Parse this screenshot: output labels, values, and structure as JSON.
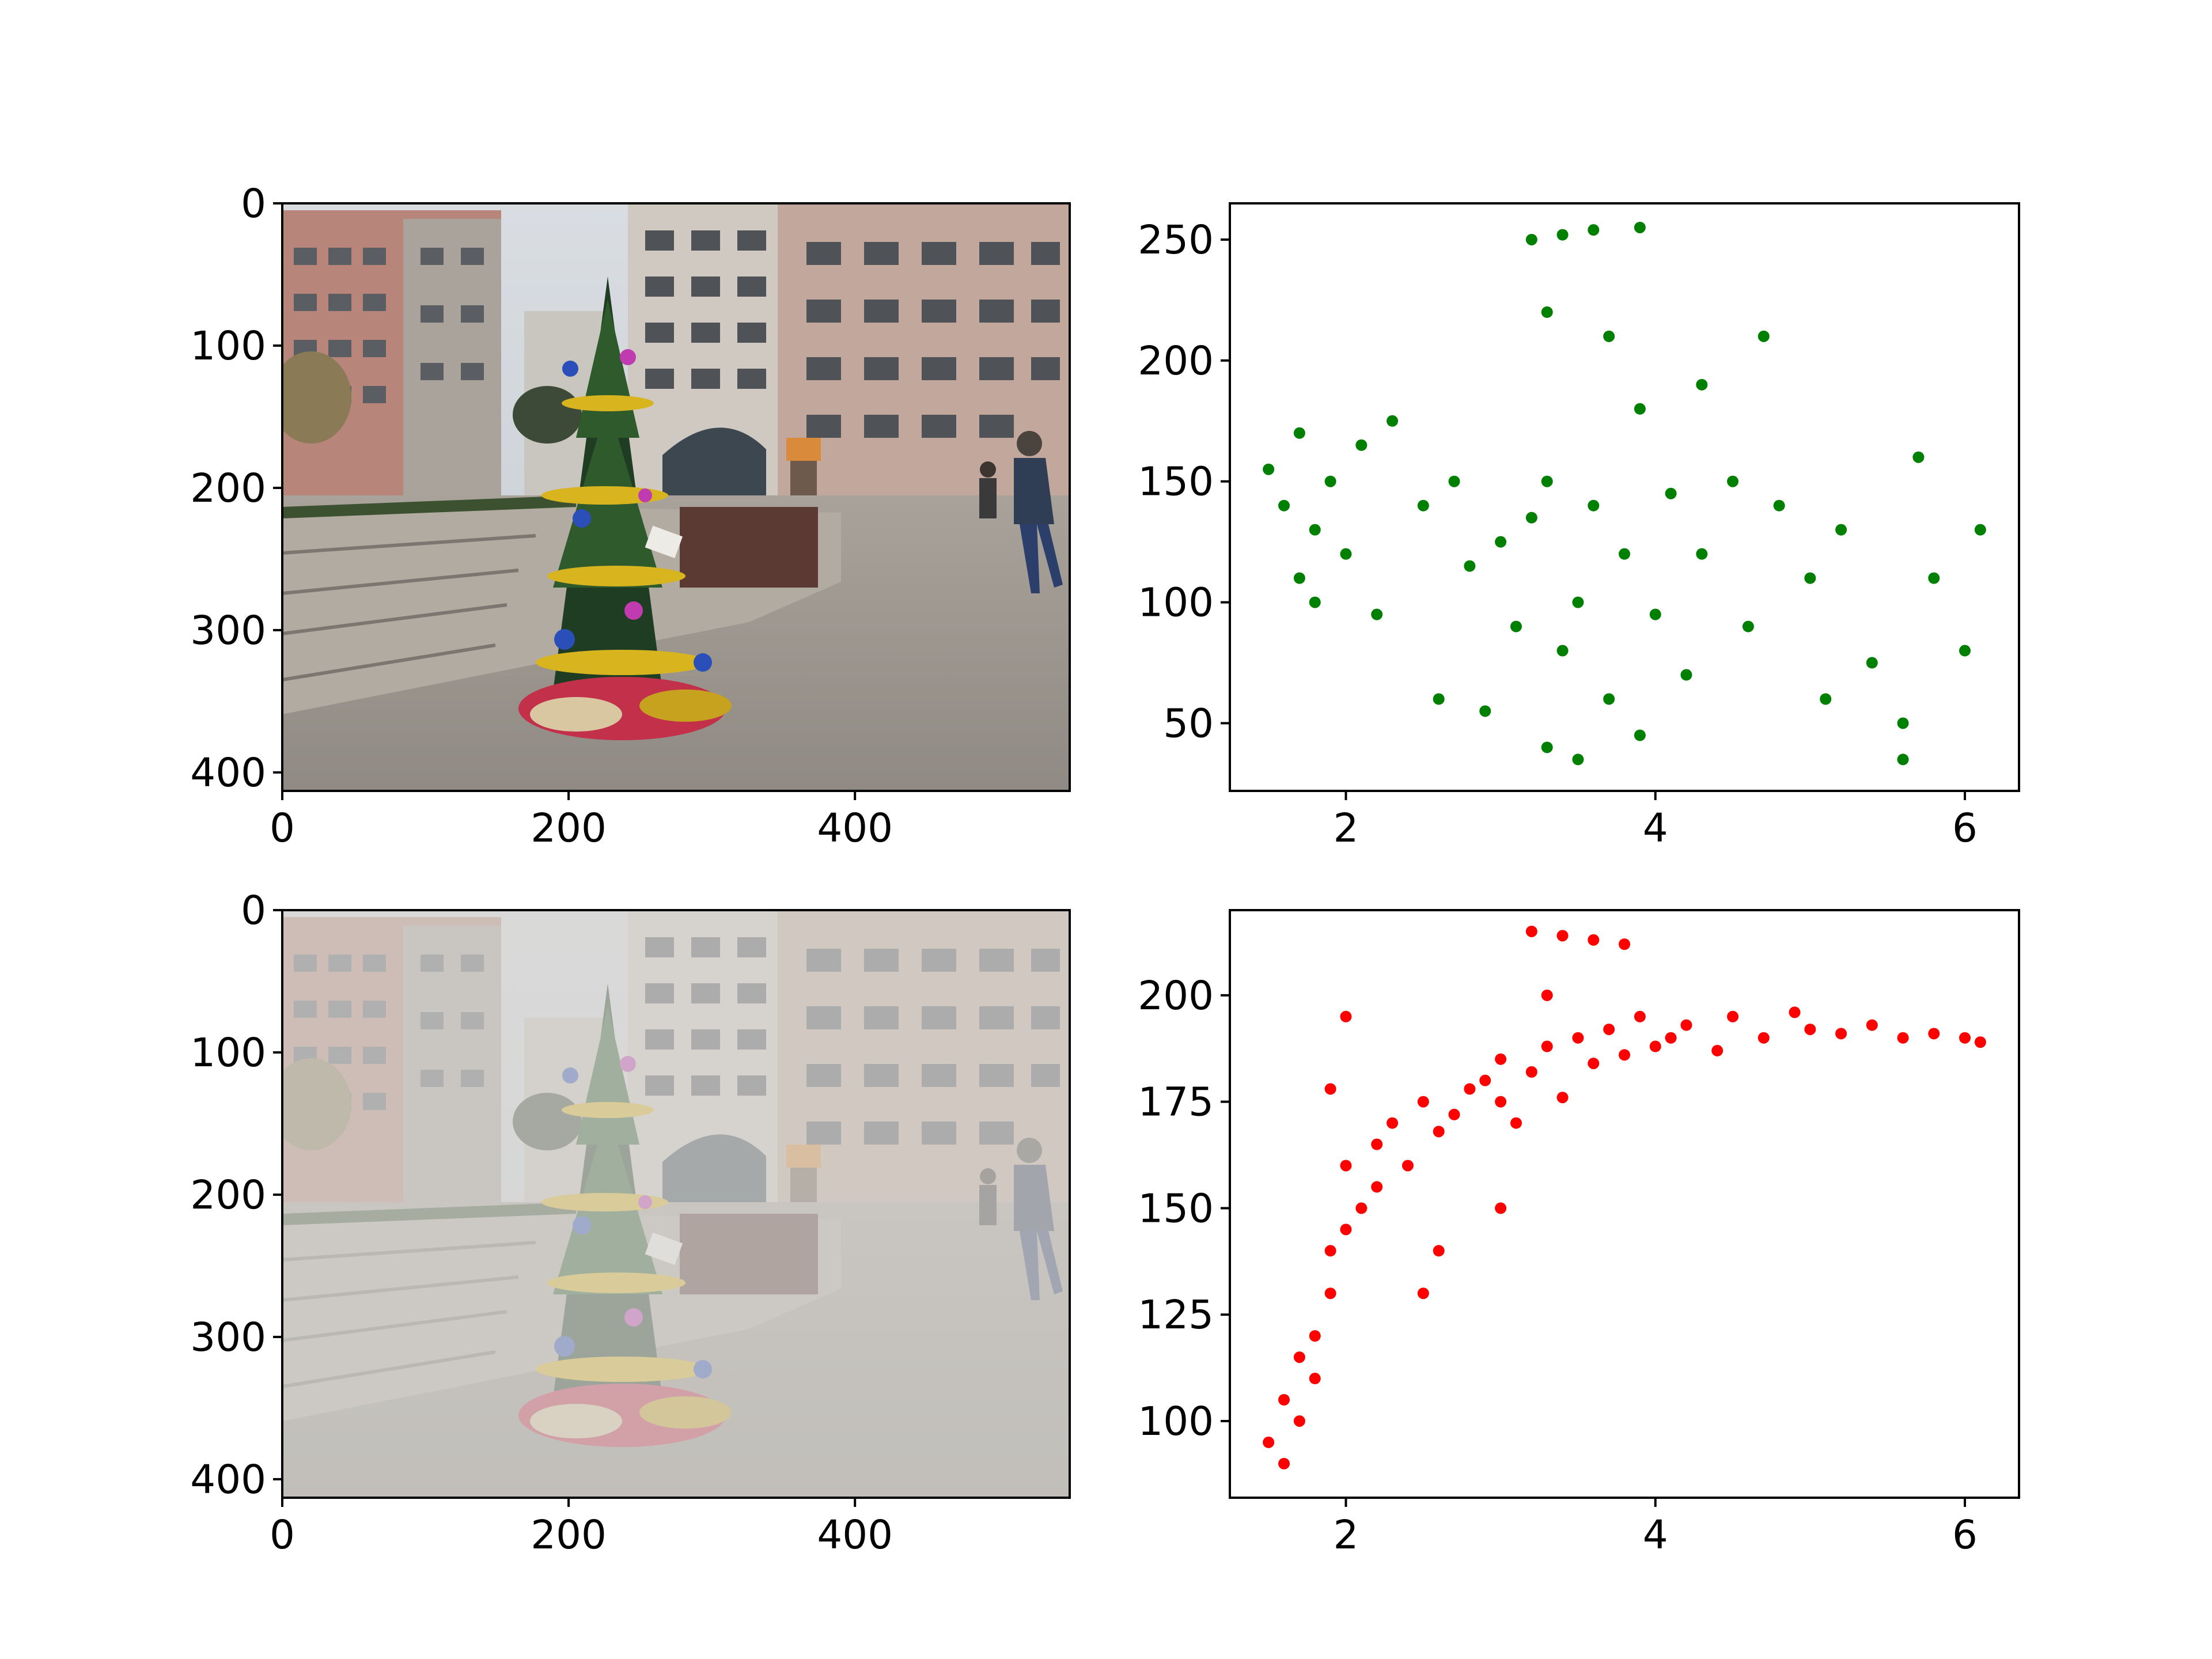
{
  "figure": {
    "layout": "2x2 grid",
    "background": "#ffffff"
  },
  "panels": {
    "clear_image": {
      "kind": "image",
      "description_icon": "photo-christmas-tree-clear",
      "x_ticks": [
        "0",
        "200",
        "400"
      ],
      "y_ticks": [
        "0",
        "100",
        "200",
        "300",
        "400"
      ],
      "xlim": [
        0,
        550
      ],
      "ylim": [
        413,
        0
      ]
    },
    "hazy_image": {
      "kind": "image",
      "description_icon": "photo-christmas-tree-hazy",
      "x_ticks": [
        "0",
        "200",
        "400"
      ],
      "y_ticks": [
        "0",
        "100",
        "200",
        "300",
        "400"
      ],
      "xlim": [
        0,
        550
      ],
      "ylim": [
        413,
        0
      ]
    }
  },
  "chart_data": [
    {
      "type": "scatter",
      "panel": "top-right",
      "color": "#008000",
      "xlim": [
        1.25,
        6.35
      ],
      "ylim": [
        22,
        265
      ],
      "x_ticks": [
        "2",
        "4",
        "6"
      ],
      "y_ticks": [
        "50",
        "100",
        "150",
        "200",
        "250"
      ],
      "grid": false,
      "series": [
        {
          "points": [
            [
              1.5,
              155
            ],
            [
              1.6,
              140
            ],
            [
              1.7,
              170
            ],
            [
              1.8,
              130
            ],
            [
              1.9,
              150
            ],
            [
              2.0,
              120
            ],
            [
              1.7,
              110
            ],
            [
              1.8,
              100
            ],
            [
              2.1,
              165
            ],
            [
              2.3,
              175
            ],
            [
              2.5,
              140
            ],
            [
              2.2,
              95
            ],
            [
              2.6,
              60
            ],
            [
              2.7,
              150
            ],
            [
              2.8,
              115
            ],
            [
              3.0,
              125
            ],
            [
              3.1,
              90
            ],
            [
              3.2,
              135
            ],
            [
              3.3,
              150
            ],
            [
              3.4,
              80
            ],
            [
              3.5,
              100
            ],
            [
              3.6,
              140
            ],
            [
              3.7,
              60
            ],
            [
              3.8,
              120
            ],
            [
              3.9,
              180
            ],
            [
              4.0,
              95
            ],
            [
              4.1,
              145
            ],
            [
              4.2,
              70
            ],
            [
              4.3,
              120
            ],
            [
              4.5,
              150
            ],
            [
              4.6,
              90
            ],
            [
              4.8,
              140
            ],
            [
              5.0,
              110
            ],
            [
              5.1,
              60
            ],
            [
              5.2,
              130
            ],
            [
              5.4,
              75
            ],
            [
              5.6,
              50
            ],
            [
              5.7,
              160
            ],
            [
              5.8,
              110
            ],
            [
              6.0,
              80
            ],
            [
              6.1,
              130
            ],
            [
              3.2,
              250
            ],
            [
              3.4,
              252
            ],
            [
              3.6,
              254
            ],
            [
              3.9,
              255
            ],
            [
              3.3,
              220
            ],
            [
              3.7,
              210
            ],
            [
              3.3,
              40
            ],
            [
              3.5,
              35
            ],
            [
              3.9,
              45
            ],
            [
              4.3,
              190
            ],
            [
              4.7,
              210
            ],
            [
              5.6,
              35
            ],
            [
              2.9,
              55
            ]
          ]
        }
      ]
    },
    {
      "type": "scatter",
      "panel": "bottom-right",
      "color": "#ff0000",
      "xlim": [
        1.25,
        6.35
      ],
      "ylim": [
        82,
        220
      ],
      "x_ticks": [
        "2",
        "4",
        "6"
      ],
      "y_ticks": [
        "100",
        "125",
        "150",
        "175",
        "200"
      ],
      "grid": false,
      "series": [
        {
          "points": [
            [
              1.5,
              95
            ],
            [
              1.6,
              90
            ],
            [
              1.6,
              105
            ],
            [
              1.7,
              100
            ],
            [
              1.7,
              115
            ],
            [
              1.8,
              120
            ],
            [
              1.8,
              110
            ],
            [
              1.9,
              130
            ],
            [
              1.9,
              140
            ],
            [
              2.0,
              145
            ],
            [
              2.0,
              160
            ],
            [
              2.1,
              150
            ],
            [
              2.2,
              165
            ],
            [
              2.3,
              170
            ],
            [
              2.4,
              160
            ],
            [
              2.5,
              175
            ],
            [
              2.6,
              168
            ],
            [
              2.7,
              172
            ],
            [
              2.8,
              178
            ],
            [
              2.9,
              180
            ],
            [
              3.0,
              175
            ],
            [
              3.0,
              185
            ],
            [
              3.1,
              170
            ],
            [
              3.2,
              182
            ],
            [
              3.3,
              188
            ],
            [
              3.4,
              176
            ],
            [
              3.5,
              190
            ],
            [
              3.6,
              184
            ],
            [
              3.7,
              192
            ],
            [
              3.8,
              186
            ],
            [
              3.9,
              195
            ],
            [
              4.0,
              188
            ],
            [
              4.1,
              190
            ],
            [
              4.2,
              193
            ],
            [
              4.4,
              187
            ],
            [
              4.5,
              195
            ],
            [
              4.7,
              190
            ],
            [
              4.9,
              196
            ],
            [
              5.0,
              192
            ],
            [
              5.2,
              191
            ],
            [
              5.4,
              193
            ],
            [
              5.6,
              190
            ],
            [
              5.8,
              191
            ],
            [
              6.0,
              190
            ],
            [
              6.1,
              189
            ],
            [
              3.2,
              215
            ],
            [
              3.4,
              214
            ],
            [
              3.6,
              213
            ],
            [
              3.8,
              212
            ],
            [
              3.3,
              200
            ],
            [
              1.9,
              178
            ],
            [
              2.0,
              195
            ],
            [
              2.2,
              155
            ],
            [
              2.6,
              140
            ],
            [
              3.0,
              150
            ],
            [
              2.5,
              130
            ]
          ]
        }
      ]
    }
  ]
}
